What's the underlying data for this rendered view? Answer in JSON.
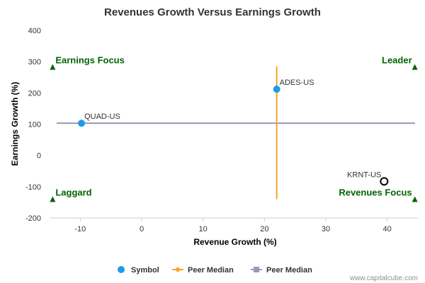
{
  "chart_data": {
    "type": "scatter",
    "title": "Revenues Growth Versus Earnings Growth",
    "xlabel": "Revenue Growth (%)",
    "ylabel": "Earnings Growth (%)",
    "xlim": [
      -15,
      45
    ],
    "ylim": [
      -200,
      400
    ],
    "xticks": [
      -10,
      0,
      10,
      20,
      30,
      40
    ],
    "yticks": [
      -200,
      -100,
      0,
      100,
      200,
      300,
      400
    ],
    "grid": false,
    "points": [
      {
        "symbol": "QUAD-US",
        "x": -9.8,
        "y": 103,
        "style": "filled"
      },
      {
        "symbol": "ADES-US",
        "x": 22,
        "y": 212,
        "style": "filled"
      },
      {
        "symbol": "KRNT-US",
        "x": 39.5,
        "y": -83,
        "style": "hollow"
      }
    ],
    "peer_median_x": 22,
    "peer_median_x_range": [
      -140,
      285
    ],
    "peer_median_y": 103,
    "quadrant_labels": [
      {
        "text": "Earnings Focus",
        "x": -14.5,
        "y": 283,
        "side": "left"
      },
      {
        "text": "Leader",
        "x": 44.5,
        "y": 283,
        "side": "right"
      },
      {
        "text": "Laggard",
        "x": -14.5,
        "y": -140,
        "side": "left"
      },
      {
        "text": "Revenues Focus",
        "x": 44.5,
        "y": -140,
        "side": "right"
      }
    ],
    "legend": [
      {
        "label": "Symbol",
        "marker": "circle",
        "color": "#1e9be9"
      },
      {
        "label": "Peer Median",
        "marker": "diamond-line",
        "color": "#f7a22a"
      },
      {
        "label": "Peer Median",
        "marker": "square-line",
        "color": "#9a98b4"
      }
    ],
    "legend_position": "bottom-center",
    "colors": {
      "symbol": "#1e9be9",
      "hollow_stroke": "#000000",
      "peer_median_vertical": "#f7a22a",
      "peer_median_horizontal": "#9a98b4",
      "quadrant": "#006400"
    }
  },
  "credit": "www.capitalcube.com"
}
